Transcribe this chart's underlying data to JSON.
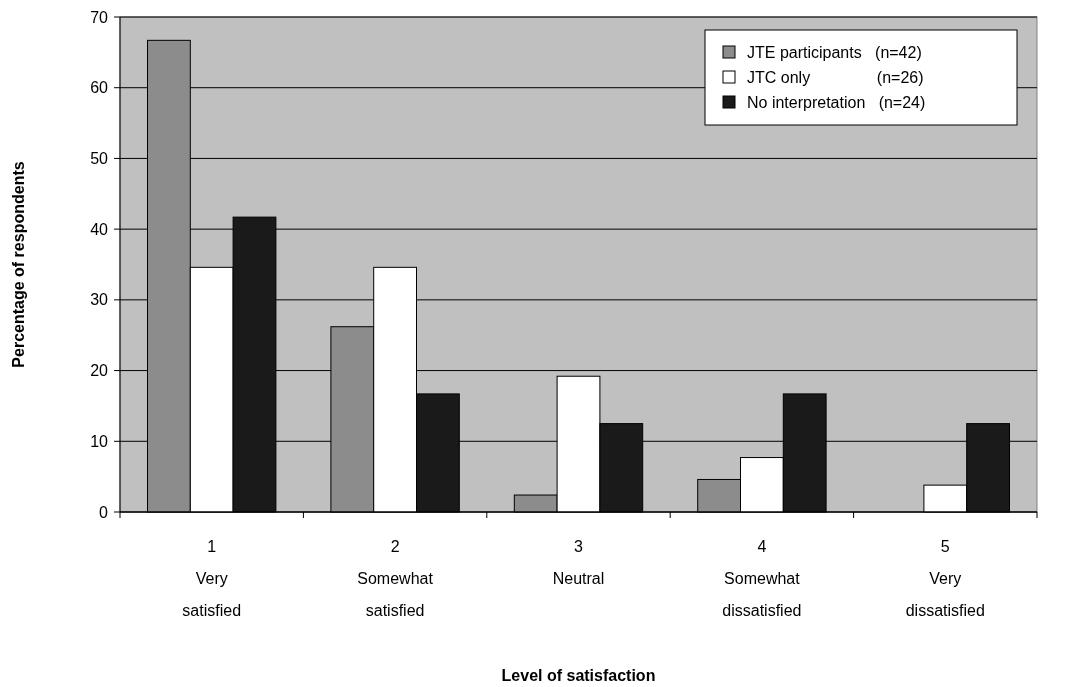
{
  "chart_data": {
    "type": "bar",
    "xlabel": "Level of satisfaction",
    "ylabel": "Percentage of respondents",
    "categories": [
      "1\nVery\nsatisfied",
      "2\nSomewhat\nsatisfied",
      "3\nNeutral",
      "4\nSomewhat\ndissatisfied",
      "5\nVery\ndissatisfied"
    ],
    "series": [
      {
        "name": "JTE participants   (n=42)",
        "color": "#8c8c8c",
        "values": [
          66.7,
          26.2,
          2.4,
          4.6,
          0
        ]
      },
      {
        "name": "JTC only               (n=26)",
        "color": "#ffffff",
        "values": [
          34.6,
          34.6,
          19.2,
          7.7,
          3.8
        ]
      },
      {
        "name": "No interpretation   (n=24)",
        "color": "#1a1a1a",
        "values": [
          41.7,
          16.7,
          12.5,
          16.7,
          12.5
        ]
      }
    ],
    "ylim": [
      0,
      70
    ],
    "yticks": [
      0,
      10,
      20,
      30,
      40,
      50,
      60,
      70
    ],
    "grid": "y",
    "legend": "top right"
  }
}
